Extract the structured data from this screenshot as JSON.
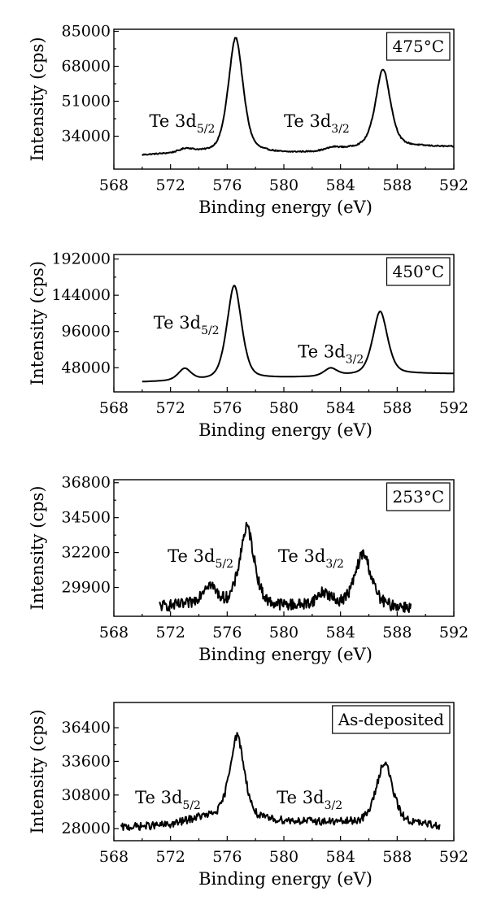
{
  "chart_data": [
    {
      "type": "line",
      "panel_label": "475°C",
      "xlabel": "Binding energy (eV)",
      "ylabel": "Intensity (cps)",
      "xlim": [
        568,
        592
      ],
      "ylim": [
        18000,
        86000
      ],
      "xticks": [
        "568",
        "572",
        "576",
        "580",
        "584",
        "588",
        "592"
      ],
      "yticks": [
        "34000",
        "51000",
        "68000",
        "85000"
      ],
      "annotations": [
        {
          "main": "Te 3d",
          "sub": "5/2",
          "x": 570.5,
          "y": 38500
        },
        {
          "main": "Te 3d",
          "sub": "3/2",
          "x": 580.0,
          "y": 38500
        }
      ],
      "noise": 300,
      "baseline": [
        [
          570.0,
          24800
        ],
        [
          574.0,
          26200
        ],
        [
          578.0,
          26500
        ],
        [
          580.0,
          25800
        ],
        [
          582.0,
          26200
        ],
        [
          584.0,
          27500
        ],
        [
          586.0,
          29000
        ],
        [
          588.0,
          29200
        ],
        [
          592.0,
          28800
        ]
      ],
      "peaks": [
        {
          "center": 576.6,
          "height": 55500,
          "width": 0.55
        },
        {
          "center": 587.0,
          "height": 37500,
          "width": 0.55
        },
        {
          "center": 573.1,
          "height": 1800,
          "width": 0.5
        },
        {
          "center": 583.5,
          "height": 1200,
          "width": 0.5
        }
      ]
    },
    {
      "type": "line",
      "panel_label": "450°C",
      "xlabel": "Binding energy (eV)",
      "ylabel": "Intensity (cps)",
      "xlim": [
        568,
        592
      ],
      "ylim": [
        16000,
        198000
      ],
      "xticks": [
        "568",
        "572",
        "576",
        "580",
        "584",
        "588",
        "592"
      ],
      "yticks": [
        "48000",
        "96000",
        "144000",
        "192000"
      ],
      "annotations": [
        {
          "main": "Te 3d",
          "sub": "5/2",
          "x": 570.8,
          "y": 100000
        },
        {
          "main": "Te 3d",
          "sub": "3/2",
          "x": 581.0,
          "y": 62000
        }
      ],
      "noise": 0,
      "baseline": [
        [
          570.0,
          29000
        ],
        [
          574.0,
          31000
        ],
        [
          578.0,
          33500
        ],
        [
          582.0,
          35500
        ],
        [
          586.0,
          39000
        ],
        [
          588.0,
          40000
        ],
        [
          592.0,
          40000
        ]
      ],
      "peaks": [
        {
          "center": 576.5,
          "height": 124000,
          "width": 0.55
        },
        {
          "center": 586.8,
          "height": 83000,
          "width": 0.55
        },
        {
          "center": 573.0,
          "height": 15500,
          "width": 0.48
        },
        {
          "center": 583.3,
          "height": 10000,
          "width": 0.48
        }
      ]
    },
    {
      "type": "line",
      "panel_label": "253°C",
      "xlabel": "Binding energy (eV)",
      "ylabel": "Intensity (cps)",
      "xlim": [
        568,
        592
      ],
      "ylim": [
        28000,
        37000
      ],
      "xticks": [
        "568",
        "572",
        "576",
        "580",
        "584",
        "588",
        "592"
      ],
      "yticks": [
        "29900",
        "32200",
        "34500",
        "36800"
      ],
      "annotations": [
        {
          "main": "Te 3d",
          "sub": "5/2",
          "x": 571.8,
          "y": 31600
        },
        {
          "main": "Te 3d",
          "sub": "3/2",
          "x": 579.6,
          "y": 31600
        }
      ],
      "noise": 380,
      "baseline": [
        [
          571.2,
          28650
        ],
        [
          575.0,
          28750
        ],
        [
          580.0,
          28650
        ],
        [
          584.0,
          28750
        ],
        [
          589.0,
          28550
        ]
      ],
      "peaks": [
        {
          "center": 577.4,
          "height": 5100,
          "width": 0.55
        },
        {
          "center": 585.6,
          "height": 3400,
          "width": 0.6
        },
        {
          "center": 574.7,
          "height": 1300,
          "width": 0.55
        },
        {
          "center": 582.8,
          "height": 800,
          "width": 0.5
        }
      ]
    },
    {
      "type": "line",
      "panel_label": "As-deposited",
      "xlabel": "Binding energy (eV)",
      "ylabel": "Intensity (cps)",
      "xlim": [
        568,
        592
      ],
      "ylim": [
        27000,
        38500
      ],
      "xticks": [
        "568",
        "572",
        "576",
        "580",
        "584",
        "588",
        "592"
      ],
      "yticks": [
        "28000",
        "30800",
        "33600",
        "36400"
      ],
      "annotations": [
        {
          "main": "Te 3d",
          "sub": "5/2",
          "x": 569.5,
          "y": 30100
        },
        {
          "main": "Te 3d",
          "sub": "3/2",
          "x": 579.5,
          "y": 30100
        }
      ],
      "noise": 320,
      "baseline": [
        [
          568.5,
          28100
        ],
        [
          572.0,
          28300
        ],
        [
          574.0,
          28900
        ],
        [
          576.0,
          29000
        ],
        [
          578.0,
          28700
        ],
        [
          584.0,
          28500
        ],
        [
          588.0,
          28500
        ],
        [
          591.0,
          28200
        ]
      ],
      "peaks": [
        {
          "center": 576.7,
          "height": 6800,
          "width": 0.55
        },
        {
          "center": 587.1,
          "height": 5000,
          "width": 0.6
        }
      ]
    }
  ]
}
